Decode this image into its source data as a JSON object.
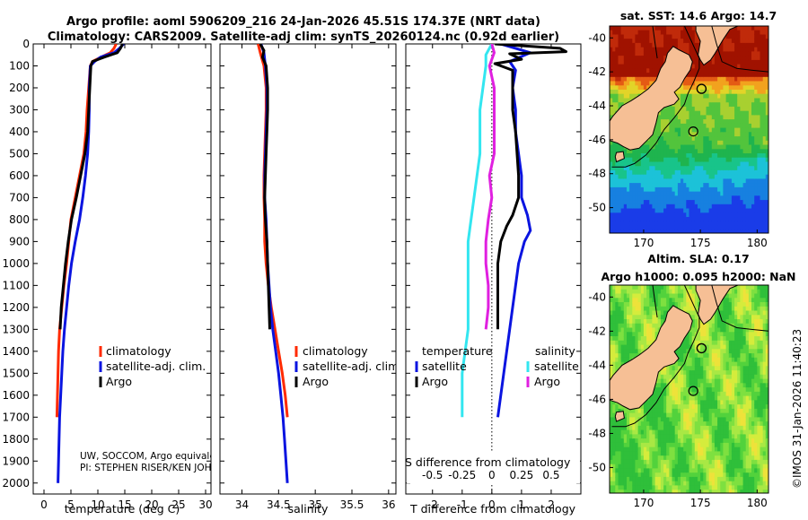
{
  "header": {
    "title_line1": "Argo profile: aoml 5906209_216 24-Jan-2026 45.51S 174.37E (NRT data)",
    "title_line2": "Climatology: CARS2009. Satellite-adj clim: synTS_20260124.nc (0.92d earlier)"
  },
  "colors": {
    "climatology": "#ff2a00",
    "satellite_adj": "#0a14e0",
    "argo": "#000000",
    "satellite_salinity": "#33e6f0",
    "argo_salinity": "#e020e0"
  },
  "chart_data": [
    {
      "type": "line",
      "name": "temperature-panel",
      "xlabel": "temperature (deg C)",
      "ylabel": "",
      "xlim": [
        -2,
        31
      ],
      "ylim": [
        2050,
        0
      ],
      "xticks": [
        0,
        5,
        10,
        15,
        20,
        25,
        30
      ],
      "yticks": [
        0,
        100,
        200,
        300,
        400,
        500,
        600,
        700,
        800,
        900,
        1000,
        1100,
        1200,
        1300,
        1400,
        1500,
        1600,
        1700,
        1800,
        1900,
        2000
      ],
      "legend": [
        "climatology",
        "satellite-adj. clim.",
        "Argo"
      ],
      "footnote": [
        "UW, SOCCOM, Argo equivale",
        "PI: STEPHEN RISER/KEN JOHN"
      ],
      "series": [
        {
          "name": "climatology",
          "points": [
            [
              13.4,
              0
            ],
            [
              13.0,
              20
            ],
            [
              12.3,
              40
            ],
            [
              10.6,
              60
            ],
            [
              9.0,
              80
            ],
            [
              8.6,
              100
            ],
            [
              8.3,
              200
            ],
            [
              8.0,
              300
            ],
            [
              7.8,
              400
            ],
            [
              7.4,
              500
            ],
            [
              6.6,
              600
            ],
            [
              5.8,
              700
            ],
            [
              5.0,
              800
            ],
            [
              4.6,
              900
            ],
            [
              4.2,
              1000
            ],
            [
              3.7,
              1100
            ],
            [
              3.3,
              1200
            ],
            [
              2.9,
              1300
            ],
            [
              2.7,
              1400
            ],
            [
              2.6,
              1500
            ],
            [
              2.5,
              1600
            ],
            [
              2.4,
              1700
            ]
          ]
        },
        {
          "name": "satellite-adj. clim.",
          "points": [
            [
              14.8,
              0
            ],
            [
              14.0,
              20
            ],
            [
              13.0,
              40
            ],
            [
              10.5,
              60
            ],
            [
              9.4,
              80
            ],
            [
              8.6,
              100
            ],
            [
              8.4,
              200
            ],
            [
              8.4,
              300
            ],
            [
              8.3,
              400
            ],
            [
              8.1,
              500
            ],
            [
              7.7,
              600
            ],
            [
              7.2,
              700
            ],
            [
              6.6,
              800
            ],
            [
              5.8,
              900
            ],
            [
              5.1,
              1000
            ],
            [
              4.6,
              1100
            ],
            [
              4.2,
              1200
            ],
            [
              3.8,
              1300
            ],
            [
              3.5,
              1400
            ],
            [
              3.3,
              1500
            ],
            [
              3.1,
              1600
            ],
            [
              2.9,
              1700
            ],
            [
              2.8,
              1800
            ],
            [
              2.7,
              1900
            ],
            [
              2.6,
              2000
            ]
          ]
        },
        {
          "name": "Argo",
          "points": [
            [
              14.6,
              0
            ],
            [
              14.2,
              20
            ],
            [
              13.6,
              40
            ],
            [
              11.2,
              60
            ],
            [
              9.0,
              80
            ],
            [
              8.7,
              100
            ],
            [
              8.5,
              200
            ],
            [
              8.3,
              300
            ],
            [
              8.1,
              400
            ],
            [
              7.6,
              500
            ],
            [
              6.8,
              600
            ],
            [
              6.0,
              700
            ],
            [
              5.1,
              800
            ],
            [
              4.5,
              900
            ],
            [
              4.0,
              1000
            ],
            [
              3.6,
              1100
            ],
            [
              3.2,
              1200
            ],
            [
              3.0,
              1300
            ]
          ]
        }
      ]
    },
    {
      "type": "line",
      "name": "salinity-panel",
      "xlabel": "salinity",
      "xlim": [
        33.7,
        36.1
      ],
      "ylim": [
        2050,
        0
      ],
      "xticks": [
        34,
        34.5,
        35,
        35.5,
        36
      ],
      "legend": [
        "climatology",
        "satellite-adj. clim.",
        "Argo"
      ],
      "series": [
        {
          "name": "climatology",
          "points": [
            [
              34.22,
              0
            ],
            [
              34.25,
              40
            ],
            [
              34.3,
              100
            ],
            [
              34.33,
              200
            ],
            [
              34.33,
              300
            ],
            [
              34.32,
              400
            ],
            [
              34.31,
              500
            ],
            [
              34.3,
              600
            ],
            [
              34.3,
              700
            ],
            [
              34.31,
              800
            ],
            [
              34.31,
              900
            ],
            [
              34.33,
              1000
            ],
            [
              34.36,
              1100
            ],
            [
              34.4,
              1200
            ],
            [
              34.45,
              1300
            ],
            [
              34.5,
              1400
            ],
            [
              34.55,
              1500
            ],
            [
              34.59,
              1600
            ],
            [
              34.62,
              1700
            ]
          ]
        },
        {
          "name": "satellite-adj. clim.",
          "points": [
            [
              34.26,
              0
            ],
            [
              34.3,
              40
            ],
            [
              34.32,
              100
            ],
            [
              34.34,
              200
            ],
            [
              34.34,
              300
            ],
            [
              34.33,
              400
            ],
            [
              34.32,
              500
            ],
            [
              34.31,
              600
            ],
            [
              34.31,
              700
            ],
            [
              34.33,
              800
            ],
            [
              34.34,
              900
            ],
            [
              34.35,
              1000
            ],
            [
              34.37,
              1100
            ],
            [
              34.39,
              1200
            ],
            [
              34.42,
              1300
            ],
            [
              34.46,
              1400
            ],
            [
              34.5,
              1500
            ],
            [
              34.53,
              1600
            ],
            [
              34.56,
              1700
            ],
            [
              34.58,
              1800
            ],
            [
              34.6,
              1900
            ],
            [
              34.62,
              2000
            ]
          ]
        },
        {
          "name": "Argo",
          "points": [
            [
              34.25,
              0
            ],
            [
              34.3,
              30
            ],
            [
              34.28,
              60
            ],
            [
              34.33,
              100
            ],
            [
              34.35,
              200
            ],
            [
              34.35,
              300
            ],
            [
              34.34,
              400
            ],
            [
              34.33,
              500
            ],
            [
              34.32,
              600
            ],
            [
              34.31,
              700
            ],
            [
              34.32,
              800
            ],
            [
              34.34,
              900
            ],
            [
              34.35,
              1000
            ],
            [
              34.36,
              1100
            ],
            [
              34.37,
              1200
            ],
            [
              34.38,
              1300
            ]
          ]
        }
      ]
    },
    {
      "type": "line",
      "name": "difference-panel",
      "xlabel": "T difference from climatology",
      "xlabel_secondary": "S difference from climatology",
      "xlim": [
        -2.9,
        3.0
      ],
      "ylim": [
        2050,
        0
      ],
      "xticks": [
        -2,
        -1,
        0,
        1,
        2
      ],
      "salinity_ticks": [
        "-0.5",
        "-0.25",
        "0",
        "0.25",
        "0.5"
      ],
      "legend_temperature_title": "temperature",
      "legend_salinity_title": "salinity",
      "legend_temperature": [
        "satellite",
        "Argo"
      ],
      "legend_salinity": [
        "satellite",
        "Argo"
      ],
      "series": [
        {
          "name": "temperature satellite",
          "points": [
            [
              0.3,
              0
            ],
            [
              1.3,
              40
            ],
            [
              0.6,
              80
            ],
            [
              0.8,
              120
            ],
            [
              0.7,
              200
            ],
            [
              0.8,
              300
            ],
            [
              0.8,
              400
            ],
            [
              0.9,
              500
            ],
            [
              1.0,
              600
            ],
            [
              1.0,
              700
            ],
            [
              1.2,
              780
            ],
            [
              1.3,
              850
            ],
            [
              1.1,
              900
            ],
            [
              0.9,
              1000
            ],
            [
              0.8,
              1100
            ],
            [
              0.6,
              1300
            ],
            [
              0.4,
              1500
            ],
            [
              0.2,
              1700
            ]
          ]
        },
        {
          "name": "temperature Argo",
          "points": [
            [
              0.1,
              0
            ],
            [
              2.3,
              20
            ],
            [
              2.5,
              35
            ],
            [
              0.6,
              45
            ],
            [
              1.0,
              70
            ],
            [
              0.1,
              90
            ],
            [
              0.7,
              120
            ],
            [
              0.7,
              300
            ],
            [
              0.8,
              400
            ],
            [
              0.9,
              600
            ],
            [
              0.9,
              700
            ],
            [
              0.7,
              780
            ],
            [
              0.5,
              830
            ],
            [
              0.3,
              900
            ],
            [
              0.2,
              1000
            ],
            [
              0.2,
              1100
            ],
            [
              0.2,
              1200
            ],
            [
              0.2,
              1300
            ]
          ]
        },
        {
          "name": "salinity satellite",
          "points": [
            [
              0.0,
              0
            ],
            [
              -0.05,
              50
            ],
            [
              -0.05,
              100
            ],
            [
              -0.1,
              300
            ],
            [
              -0.1,
              500
            ],
            [
              -0.15,
              700
            ],
            [
              -0.2,
              900
            ],
            [
              -0.2,
              1100
            ],
            [
              -0.2,
              1300
            ],
            [
              -0.25,
              1500
            ],
            [
              -0.25,
              1700
            ]
          ]
        },
        {
          "name": "salinity Argo",
          "points": [
            [
              0.0,
              0
            ],
            [
              0.02,
              40
            ],
            [
              -0.02,
              100
            ],
            [
              0.02,
              200
            ],
            [
              0.02,
              300
            ],
            [
              0.02,
              500
            ],
            [
              -0.02,
              600
            ],
            [
              0.0,
              700
            ],
            [
              -0.03,
              800
            ],
            [
              -0.05,
              900
            ],
            [
              -0.05,
              1000
            ],
            [
              -0.03,
              1100
            ],
            [
              -0.03,
              1200
            ],
            [
              -0.05,
              1300
            ]
          ]
        }
      ]
    },
    {
      "type": "heatmap",
      "name": "sst-map",
      "title": "sat. SST: 14.6 Argo: 14.7",
      "xticks": [
        "170",
        "175",
        "180"
      ],
      "yticks": [
        "-40",
        "-42",
        "-44",
        "-46",
        "-48",
        "-50"
      ],
      "xlim": [
        167,
        181
      ],
      "ylim": [
        -51.5,
        -39.3
      ]
    },
    {
      "type": "heatmap",
      "name": "sla-map",
      "title_line1": "Altim. SLA: 0.17",
      "title_line2": "Argo h1000: 0.095 h2000: NaN",
      "xticks": [
        "170",
        "175",
        "180"
      ],
      "yticks": [
        "-40",
        "-42",
        "-44",
        "-46",
        "-48",
        "-50"
      ],
      "xlim": [
        167,
        181
      ],
      "ylim": [
        -51.5,
        -39.3
      ]
    }
  ],
  "watermark": "©IMOS 31-Jan-2026 11:40:23"
}
